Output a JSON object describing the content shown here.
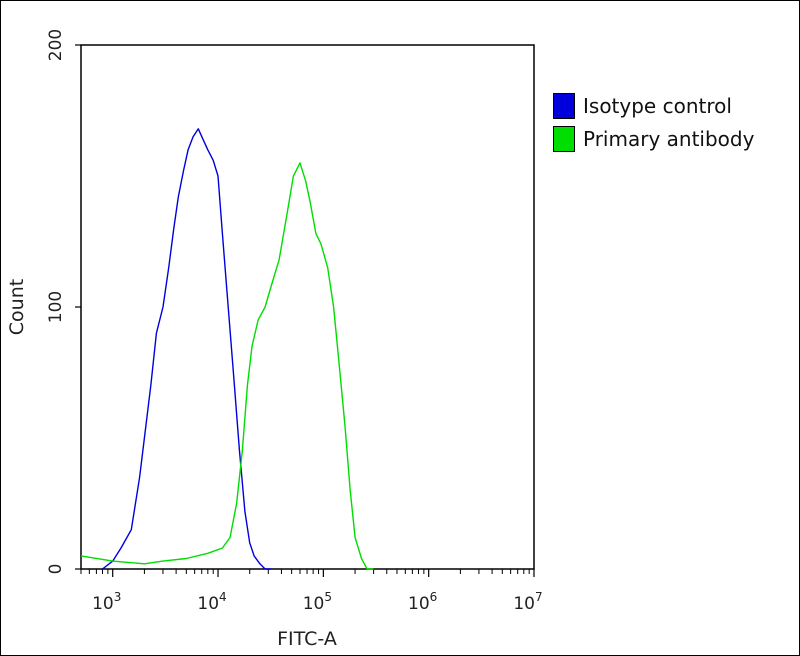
{
  "chart_data": {
    "type": "line",
    "title": "",
    "xlabel": "FITC-A",
    "ylabel": "Count",
    "x_scale": "log",
    "xlim": [
      500,
      10000000
    ],
    "ylim": [
      0,
      200
    ],
    "y_ticks": [
      0,
      100,
      200
    ],
    "x_tick_exponents": [
      3,
      4,
      5,
      6,
      7
    ],
    "x_tick_base": "10",
    "grid": false,
    "legend_position": "right-outside-top",
    "series": [
      {
        "name": "Isotype control",
        "color": "#0000dd",
        "x": [
          800,
          1000,
          1200,
          1500,
          1800,
          2000,
          2300,
          2600,
          3000,
          3400,
          3800,
          4200,
          4700,
          5200,
          5800,
          6500,
          7200,
          8000,
          9000,
          10000,
          11000,
          12500,
          14000,
          16000,
          18000,
          20000,
          22000,
          25000,
          28000,
          32000
        ],
        "y": [
          0,
          3,
          8,
          15,
          35,
          50,
          70,
          90,
          100,
          115,
          130,
          142,
          152,
          160,
          165,
          168,
          164,
          160,
          156,
          150,
          128,
          100,
          75,
          45,
          22,
          10,
          5,
          2,
          0,
          0
        ]
      },
      {
        "name": "Primary antibody",
        "color": "#00dd00",
        "x": [
          500,
          1000,
          2000,
          3000,
          5000,
          8000,
          11000,
          13000,
          15000,
          17000,
          19000,
          21000,
          24000,
          28000,
          32000,
          38000,
          45000,
          52000,
          60000,
          68000,
          75000,
          85000,
          95000,
          110000,
          125000,
          140000,
          160000,
          180000,
          200000,
          230000,
          260000,
          300000
        ],
        "y": [
          5,
          3,
          2,
          3,
          4,
          6,
          8,
          12,
          25,
          45,
          70,
          85,
          95,
          100,
          108,
          118,
          135,
          150,
          155,
          148,
          140,
          128,
          124,
          115,
          100,
          80,
          55,
          30,
          12,
          4,
          0,
          0
        ]
      }
    ]
  }
}
